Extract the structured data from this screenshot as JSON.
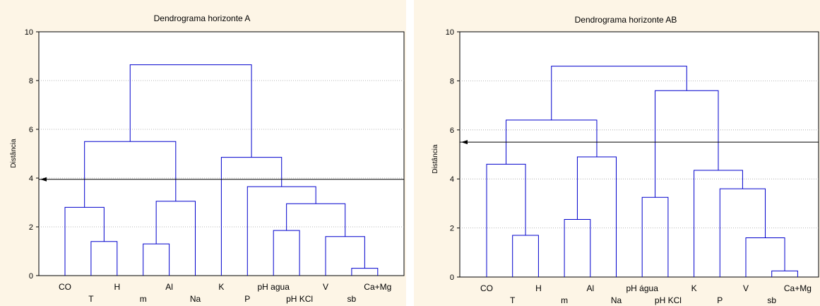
{
  "chart_data": [
    {
      "type": "dendrogram",
      "title": "Dendrograma horizonte A",
      "ylabel": "Distância",
      "ylim": [
        0,
        10
      ],
      "yticks": [
        0,
        2,
        4,
        6,
        8,
        10
      ],
      "cut_line": 3.95,
      "leaves": [
        "CO",
        "T",
        "H",
        "m",
        "Al",
        "Na",
        "K",
        "P",
        "pH agua",
        "pH KCl",
        "V",
        "sb",
        "Ca+Mg"
      ],
      "merges": [
        {
          "left": "leaf:12",
          "right": "leaf:11",
          "height": 0.3
        },
        {
          "left": "leaf:1",
          "right": "leaf:2",
          "height": 1.4
        },
        {
          "left": "leaf:3",
          "right": "leaf:4",
          "height": 1.3
        },
        {
          "left": "leaf:10",
          "right": "node:0",
          "height": 1.6
        },
        {
          "left": "leaf:8",
          "right": "leaf:9",
          "height": 1.85
        },
        {
          "left": "leaf:0",
          "right": "node:1",
          "height": 2.8
        },
        {
          "left": "node:4",
          "right": "node:3",
          "height": 2.95
        },
        {
          "left": "node:2",
          "right": "leaf:5",
          "height": 3.05
        },
        {
          "left": "leaf:7",
          "right": "node:6",
          "height": 3.65
        },
        {
          "left": "leaf:6",
          "right": "node:8",
          "height": 4.85
        },
        {
          "left": "node:5",
          "right": "node:7",
          "height": 5.5
        },
        {
          "left": "node:10",
          "right": "node:9",
          "height": 8.65
        }
      ]
    },
    {
      "type": "dendrogram",
      "title": "Dendrograma horizonte AB",
      "ylabel": "Distância",
      "ylim": [
        0,
        10
      ],
      "yticks": [
        0,
        2,
        4,
        6,
        8,
        10
      ],
      "cut_line": 5.5,
      "leaves": [
        "CO",
        "T",
        "H",
        "m",
        "Al",
        "Na",
        "pH água",
        "pH KCl",
        "K",
        "P",
        "V",
        "sb",
        "Ca+Mg"
      ],
      "merges": [
        {
          "left": "leaf:12",
          "right": "leaf:11",
          "height": 0.25
        },
        {
          "left": "leaf:1",
          "right": "leaf:2",
          "height": 1.7
        },
        {
          "left": "leaf:3",
          "right": "leaf:4",
          "height": 2.35
        },
        {
          "left": "leaf:10",
          "right": "node:0",
          "height": 1.6
        },
        {
          "left": "leaf:6",
          "right": "leaf:7",
          "height": 3.25
        },
        {
          "left": "leaf:9",
          "right": "node:3",
          "height": 3.6
        },
        {
          "left": "leaf:8",
          "right": "node:5",
          "height": 4.35
        },
        {
          "left": "leaf:0",
          "right": "node:1",
          "height": 4.6
        },
        {
          "left": "node:2",
          "right": "leaf:5",
          "height": 4.9
        },
        {
          "left": "node:7",
          "right": "node:8",
          "height": 6.4
        },
        {
          "left": "node:4",
          "right": "node:6",
          "height": 7.6
        },
        {
          "left": "node:9",
          "right": "node:10",
          "height": 8.6
        }
      ]
    }
  ],
  "colors": {
    "background": "#fdf5e6",
    "plot_background": "#ffffff",
    "branch": "#0000cd",
    "cut_line": "#000000",
    "grid": "#a0a0a0"
  }
}
